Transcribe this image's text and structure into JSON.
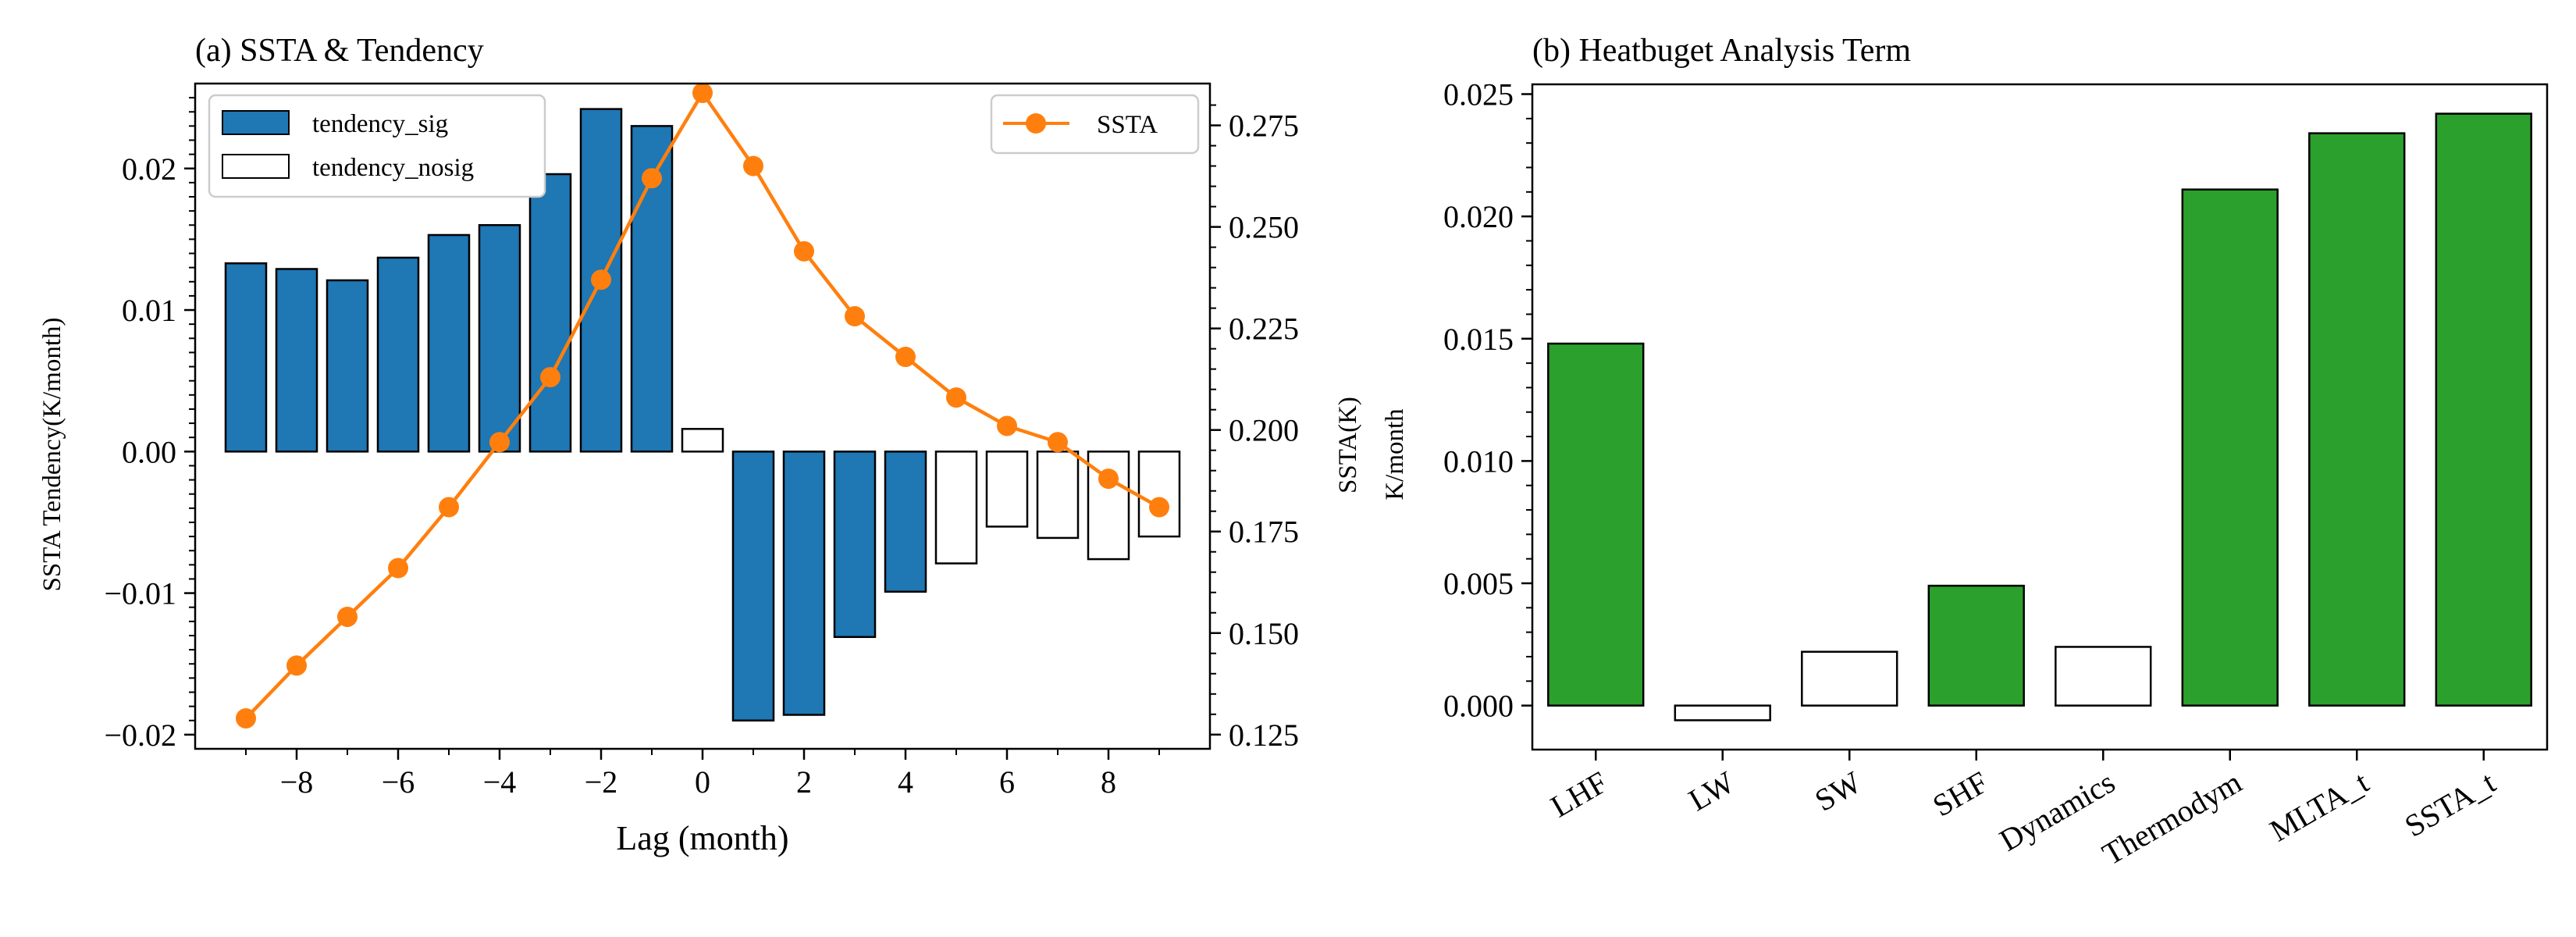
{
  "chart_data": [
    {
      "type": "bar+line",
      "title": "(a) SSTA & Tendency",
      "xlabel": "Lag (month)",
      "ylabel_left": "SSTA Tendency(K/month)",
      "ylabel_right": "SSTA(K)",
      "x": [
        -9,
        -8,
        -7,
        -6,
        -5,
        -4,
        -3,
        -2,
        -1,
        0,
        1,
        2,
        3,
        4,
        5,
        6,
        7,
        8,
        9
      ],
      "xlim": [
        -10,
        10
      ],
      "xticks": [
        -8,
        -6,
        -4,
        -2,
        0,
        2,
        4,
        6,
        8
      ],
      "xtick_labels": [
        "−8",
        "−6",
        "−4",
        "−2",
        "0",
        "2",
        "4",
        "6",
        "8"
      ],
      "ylim_left": [
        -0.021,
        0.026
      ],
      "yticks_left": [
        -0.02,
        -0.01,
        0.0,
        0.01,
        0.02
      ],
      "ytick_labels_left": [
        "−0.02",
        "−0.01",
        "0.00",
        "0.01",
        "0.02"
      ],
      "ylim_right": [
        0.1215,
        0.2853
      ],
      "yticks_right": [
        0.125,
        0.15,
        0.175,
        0.2,
        0.225,
        0.25,
        0.275
      ],
      "ytick_labels_right": [
        "0.125",
        "0.150",
        "0.175",
        "0.200",
        "0.225",
        "0.250",
        "0.275"
      ],
      "series": [
        {
          "name": "tendency_sig",
          "kind": "bar",
          "color": "#1f77b4",
          "values": [
            0.0133,
            0.0129,
            0.0121,
            0.0137,
            0.0153,
            0.016,
            0.0196,
            0.0242,
            0.023,
            null,
            -0.019,
            -0.0186,
            -0.0131,
            -0.0099,
            null,
            null,
            null,
            null,
            null
          ]
        },
        {
          "name": "tendency_nosig",
          "kind": "bar",
          "color": "#ffffff",
          "values": [
            null,
            null,
            null,
            null,
            null,
            null,
            null,
            null,
            null,
            0.0016,
            null,
            null,
            null,
            null,
            -0.0079,
            -0.0053,
            -0.0061,
            -0.0076,
            -0.006
          ]
        },
        {
          "name": "SSTA",
          "kind": "line",
          "axis": "right",
          "color": "#ff7f0e",
          "values": [
            0.129,
            0.142,
            0.154,
            0.166,
            0.181,
            0.197,
            0.213,
            0.237,
            0.262,
            0.283,
            0.265,
            0.244,
            0.228,
            0.218,
            0.208,
            0.201,
            0.197,
            0.188,
            0.181
          ]
        }
      ],
      "legend_left_placement": "upper-left",
      "legend_right_placement": "upper-right"
    },
    {
      "type": "bar",
      "title": "(b) Heatbuget Analysis Term",
      "ylabel": "K/month",
      "categories": [
        "LHF",
        "LW",
        "SW",
        "SHF",
        "Dynamics",
        "Thermodym",
        "MLTA_t",
        "SSTA_t"
      ],
      "values": [
        0.0148,
        -0.0006,
        0.0022,
        0.0049,
        0.0024,
        0.0211,
        0.0234,
        0.0242
      ],
      "significant": [
        true,
        false,
        false,
        true,
        false,
        true,
        true,
        true
      ],
      "sig_color": "#2ca02c",
      "nosig_color": "#ffffff",
      "ylim": [
        -0.0018,
        0.0254
      ],
      "yticks": [
        0.0,
        0.005,
        0.01,
        0.015,
        0.02,
        0.025
      ],
      "ytick_labels": [
        "0.000",
        "0.005",
        "0.010",
        "0.015",
        "0.020",
        "0.025"
      ]
    }
  ]
}
